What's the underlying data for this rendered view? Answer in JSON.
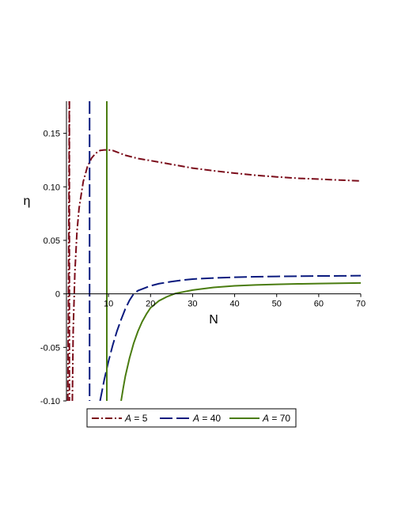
{
  "chart_data": {
    "type": "line",
    "title": "",
    "xlabel": "N",
    "ylabel": "η",
    "xlim": [
      0,
      70
    ],
    "ylim": [
      -0.1,
      0.18
    ],
    "x_ticks": [
      "10",
      "20",
      "30",
      "40",
      "50",
      "60",
      "70"
    ],
    "y_ticks": [
      "-0.10",
      "-0.05",
      "0",
      "0.05",
      "0.10",
      "0.15"
    ],
    "legend_position": "bottom",
    "grid": false,
    "series": [
      {
        "name": "A = 5",
        "legend_var": "A",
        "legend_value": "= 5",
        "color": "#7b0c1a",
        "dash": "dashdot",
        "asymptote_x": 0.7,
        "segments": [
          {
            "x": [
              0.32,
              0.38,
              0.45,
              0.52,
              0.58,
              0.63,
              0.67
            ],
            "y": [
              -0.1,
              -0.06,
              -0.02,
              0.03,
              0.08,
              0.13,
              0.18
            ]
          },
          {
            "x": [
              1.4,
              1.6,
              2.0,
              2.5,
              3.0,
              4.0,
              5.0,
              6.0,
              7.0,
              8.0,
              9.0,
              10.0,
              11.0,
              12.0,
              14.0,
              17.0,
              20.0,
              25.0,
              30.0,
              35.0,
              40.0,
              45.0,
              50.0,
              55.0,
              60.0,
              65.0,
              70.0
            ],
            "y": [
              -0.1,
              -0.035,
              0.02,
              0.058,
              0.08,
              0.105,
              0.119,
              0.127,
              0.1315,
              0.134,
              0.1345,
              0.1345,
              0.134,
              0.1325,
              0.1295,
              0.1265,
              0.1245,
              0.121,
              0.1175,
              0.115,
              0.1128,
              0.1108,
              0.1093,
              0.108,
              0.1072,
              0.1063,
              0.1055
            ]
          }
        ]
      },
      {
        "name": "A = 40",
        "legend_var": "A",
        "legend_value": "= 40",
        "color": "#0a1a7e",
        "dash": "longdash",
        "asymptote_x": 5.5,
        "segments": [
          {
            "x": [
              5.5,
              5.5
            ],
            "y": [
              0.18,
              0.18
            ]
          },
          {
            "x": [
              5.5,
              5.5
            ],
            "y": [
              -0.1,
              -0.1
            ]
          },
          {
            "x": [
              8.0,
              9.0,
              10.0,
              11.0,
              12.0,
              13.0,
              14.0,
              15.0,
              16.0,
              17.0,
              18.0,
              20.0,
              22.0,
              25.0,
              28.0,
              30.0,
              35.0,
              40.0,
              45.0,
              50.0,
              55.0,
              60.0,
              65.0,
              70.0
            ],
            "y": [
              -0.1,
              -0.08,
              -0.063,
              -0.048,
              -0.035,
              -0.024,
              -0.014,
              -0.006,
              0.0,
              0.003,
              0.0045,
              0.0075,
              0.0095,
              0.0115,
              0.013,
              0.0138,
              0.0148,
              0.0155,
              0.016,
              0.0163,
              0.0165,
              0.0167,
              0.0168,
              0.017
            ]
          }
        ]
      },
      {
        "name": "A = 70",
        "legend_var": "A",
        "legend_value": "= 70",
        "color": "#4a7c10",
        "dash": "solid",
        "asymptote_x": 9.6,
        "segments": [
          {
            "x": [
              13.0,
              13.5,
              14.0,
              15.0,
              16.0,
              17.0,
              18.0,
              19.0,
              20.0,
              22.0,
              24.0,
              26.0,
              28.0,
              30.0,
              32.0,
              35.0,
              40.0,
              45.0,
              50.0,
              55.0,
              60.0,
              65.0,
              70.0
            ],
            "y": [
              -0.1,
              -0.088,
              -0.077,
              -0.06,
              -0.046,
              -0.035,
              -0.026,
              -0.019,
              -0.013,
              -0.0065,
              -0.0025,
              0.0005,
              0.002,
              0.0035,
              0.0045,
              0.006,
              0.0075,
              0.0083,
              0.0089,
              0.0093,
              0.0096,
              0.0099,
              0.0102
            ]
          }
        ]
      }
    ]
  }
}
